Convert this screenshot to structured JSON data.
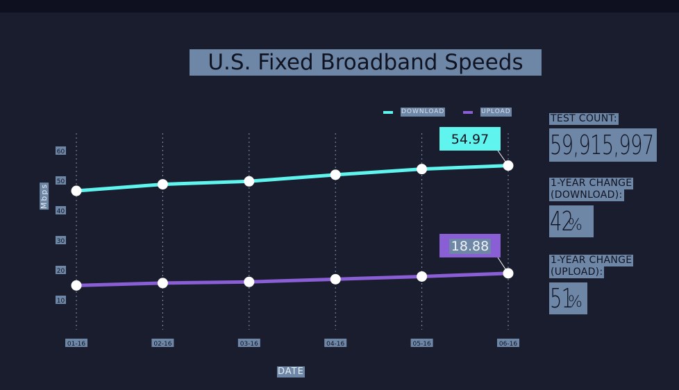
{
  "title": "U.S. Fixed Broadband Speeds",
  "legend": [
    {
      "label": "DOWNLOAD",
      "color": "#5ff5ee"
    },
    {
      "label": "UPLOAD",
      "color": "#8a5fd6"
    }
  ],
  "sidebar": {
    "test_count_label": "TEST COUNT:",
    "test_count_value": "59,915,997",
    "download_change_label_1": "1-YEAR CHANGE",
    "download_change_label_2": "(DOWNLOAD):",
    "download_change_value": "42",
    "upload_change_label_1": "1-YEAR CHANGE",
    "upload_change_label_2": "(UPLOAD):",
    "upload_change_value": "51",
    "percent_sign": "%"
  },
  "chart_data": {
    "type": "line",
    "title": "U.S. Fixed Broadband Speeds",
    "xlabel": "DATE",
    "ylabel": "Mbps",
    "categories": [
      "01-16",
      "02-16",
      "03-16",
      "04-16",
      "05-16",
      "06-16"
    ],
    "y_ticks": [
      10,
      20,
      30,
      40,
      50,
      60
    ],
    "ylim": [
      0,
      70
    ],
    "grid": "vertical-dotted",
    "legend_position": "top-right",
    "series": [
      {
        "name": "DOWNLOAD",
        "color": "#5ff5ee",
        "values": [
          46.5,
          48.7,
          49.7,
          51.9,
          53.8,
          54.97
        ]
      },
      {
        "name": "UPLOAD",
        "color": "#8a5fd6",
        "values": [
          14.8,
          15.6,
          16.0,
          16.9,
          17.8,
          18.88
        ]
      }
    ],
    "annotations": [
      {
        "series": "DOWNLOAD",
        "label": "54.97"
      },
      {
        "series": "UPLOAD",
        "label": "18.88"
      }
    ]
  }
}
